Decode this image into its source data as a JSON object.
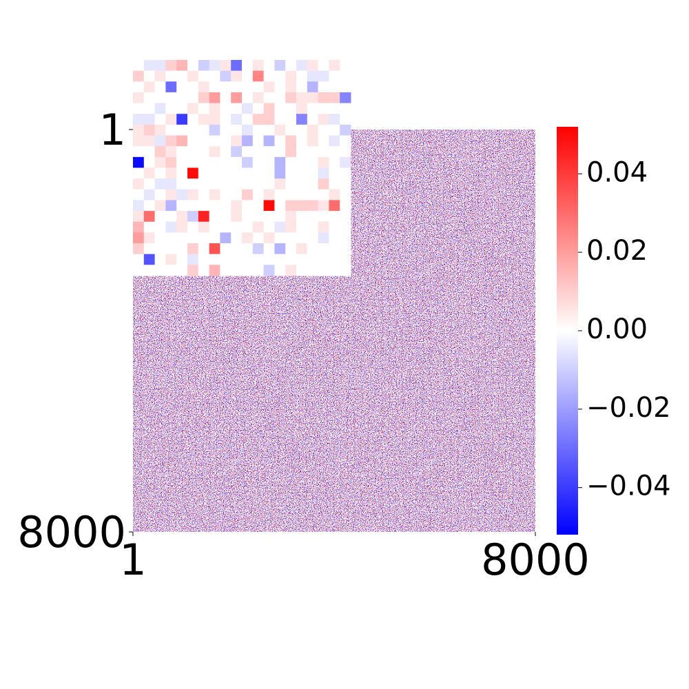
{
  "chart_data": [
    {
      "type": "heatmap",
      "xlim": [
        1,
        8000
      ],
      "ylim": [
        1,
        8000
      ],
      "y_inverted": true,
      "xticks": [
        1,
        8000
      ],
      "yticks": [
        1,
        8000
      ],
      "colormap": [
        "#0000ff",
        "#ffffff",
        "#ff0000"
      ],
      "colorbar": {
        "lim": [
          -0.052,
          0.052
        ],
        "ticks": [
          {
            "value": -0.04,
            "label": "−0.04"
          },
          {
            "value": -0.02,
            "label": "−0.02"
          },
          {
            "value": 0,
            "label": "0.00"
          },
          0.02,
          0.04
        ]
      }
    },
    {
      "type": "heatmap",
      "values": [
        [
          0,
          -0.005,
          -0.005,
          0.01,
          0.015,
          0,
          -0.01,
          -0.005,
          0.005,
          -0.03,
          0,
          0.005,
          0,
          -0.01,
          0,
          -0.005,
          0.005,
          0,
          0.005,
          0
        ],
        [
          0.01,
          0,
          0.005,
          0,
          0,
          0.005,
          0,
          0,
          -0.01,
          0.005,
          0,
          0.025,
          0,
          0,
          0.005,
          0,
          -0.005,
          -0.005,
          0,
          0
        ],
        [
          0,
          0.005,
          0,
          -0.03,
          0,
          0,
          0.005,
          0,
          0,
          0,
          0,
          0,
          0.005,
          0,
          0.005,
          0,
          -0.015,
          0,
          0,
          0
        ],
        [
          0.005,
          0,
          0,
          0,
          0,
          0,
          0.01,
          0.02,
          0,
          0.02,
          0,
          0.005,
          0,
          0,
          0.01,
          0.005,
          0.005,
          0.01,
          0.01,
          -0.025
        ],
        [
          0,
          0,
          -0.005,
          0,
          0,
          0.005,
          0,
          0.005,
          0,
          0,
          -0.005,
          0,
          0.01,
          0,
          0,
          0.005,
          0,
          0,
          0,
          0
        ],
        [
          -0.005,
          -0.005,
          0,
          0.005,
          -0.04,
          0,
          0.005,
          0.005,
          0,
          -0.005,
          0,
          0.01,
          0.01,
          0,
          0,
          -0.025,
          0,
          0.005,
          -0.005,
          0
        ],
        [
          0.005,
          0.01,
          0.005,
          0,
          0,
          0,
          0,
          -0.01,
          0,
          0,
          -0.005,
          0,
          0,
          0.005,
          0,
          0,
          0.005,
          0,
          0,
          -0.01
        ],
        [
          0.005,
          0.005,
          -0.005,
          0.01,
          0.015,
          0,
          0,
          0,
          0,
          0.005,
          -0.015,
          0,
          -0.015,
          0,
          0.01,
          0,
          0.005,
          0,
          -0.005,
          0
        ],
        [
          0,
          0,
          0.01,
          0.005,
          0,
          0,
          0,
          0.005,
          0,
          -0.01,
          0,
          0,
          0,
          0,
          0.01,
          0,
          0,
          0,
          0,
          0
        ],
        [
          -0.05,
          0,
          0.005,
          0.01,
          0,
          0,
          0,
          0,
          0,
          0,
          -0.01,
          0,
          0,
          -0.015,
          0,
          0,
          0,
          0.005,
          0,
          -0.005
        ],
        [
          0,
          0.005,
          0,
          0.005,
          0,
          0.05,
          0,
          0,
          0,
          0,
          0,
          0,
          0,
          -0.015,
          0,
          0,
          0,
          -0.005,
          0,
          0
        ],
        [
          0.005,
          0,
          -0.005,
          -0.005,
          0,
          0,
          0,
          0,
          0,
          0,
          0,
          0,
          0,
          0.005,
          0,
          0,
          0,
          0.01,
          0,
          0
        ],
        [
          0,
          -0.005,
          0,
          0.005,
          -0.005,
          0.005,
          0,
          0.005,
          0,
          0,
          0.01,
          0,
          0.005,
          0,
          0,
          0,
          0,
          0,
          0.005,
          0
        ],
        [
          -0.005,
          0,
          0.005,
          -0.015,
          0,
          0,
          0,
          0,
          0,
          0.005,
          0,
          0,
          0.05,
          0,
          0.01,
          0.01,
          0.01,
          0.005,
          0.03,
          0
        ],
        [
          0.005,
          0.03,
          0,
          0,
          0.005,
          -0.01,
          0.045,
          0,
          0,
          0.005,
          0,
          0,
          0,
          0,
          0.005,
          0,
          0,
          0,
          0,
          0
        ],
        [
          0.015,
          0,
          0,
          -0.005,
          0.005,
          0,
          0.005,
          0,
          0,
          0,
          0,
          0.005,
          0,
          -0.005,
          0.005,
          0,
          0,
          0.005,
          0,
          0
        ],
        [
          0.02,
          0.005,
          0,
          0,
          0,
          0,
          0,
          0,
          -0.015,
          0,
          0.005,
          0,
          0.005,
          0,
          0,
          0,
          0,
          -0.005,
          0,
          0
        ],
        [
          0.01,
          0,
          0,
          0,
          0,
          0.01,
          0,
          0.035,
          0,
          0,
          0,
          -0.01,
          0,
          -0.015,
          0,
          0.005,
          0,
          0,
          0,
          0
        ],
        [
          0,
          -0.035,
          0,
          0.005,
          0,
          -0.005,
          0,
          0,
          0,
          0,
          0,
          0,
          0,
          0,
          0,
          0,
          0,
          0,
          0,
          0
        ],
        [
          0,
          0,
          0,
          0,
          0,
          0.01,
          0,
          0.015,
          0,
          0,
          0,
          0,
          -0.01,
          0,
          0.005,
          0,
          0,
          0,
          0,
          0
        ]
      ]
    }
  ]
}
